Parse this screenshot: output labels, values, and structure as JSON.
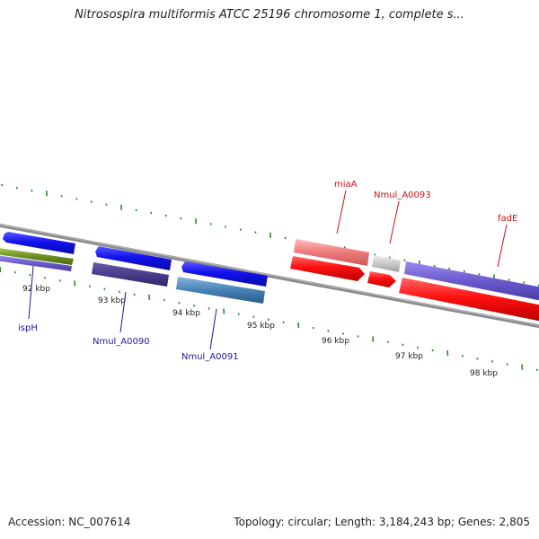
{
  "title": "Nitrosospira multiformis ATCC 25196 chromosome 1, complete s...",
  "accession": "Accession: NC_007614",
  "summary": "Topology: circular; Length: 3,184,243 bp; Genes: 2,805",
  "scale_labels": [
    "92 kbp",
    "93 kbp",
    "94 kbp",
    "95 kbp",
    "96 kbp",
    "97 kbp",
    "98 kbp"
  ],
  "gene_labels": {
    "ispH": "ispH",
    "nmul_a0090": "Nmul_A0090",
    "nmul_a0091": "Nmul_A0091",
    "miaA": "miaA",
    "nmul_a0093": "Nmul_A0093",
    "fadE": "fadE"
  },
  "colors": {
    "forward_strand": "#1010e0",
    "reverse_strand": "#ee1111",
    "label_blue": "#1a1a9a",
    "label_red": "#cc1111",
    "ticks": "#2a8a2a",
    "backbone": "#888888"
  }
}
